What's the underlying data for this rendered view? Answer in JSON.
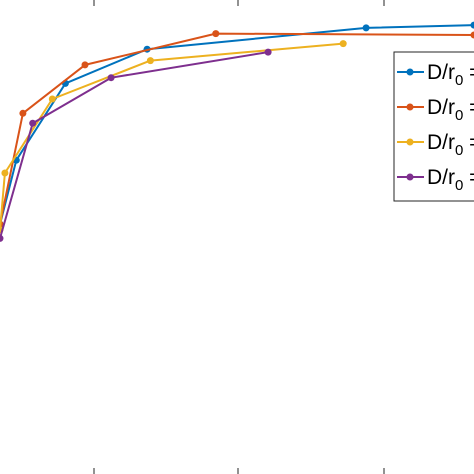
{
  "chart_data": {
    "type": "line",
    "title": "",
    "xlabel": "",
    "ylabel": "",
    "grid": false,
    "legend_position": "right, partially cropped",
    "series": [
      {
        "name": "D/r0 = …",
        "legend_label_main": "D/r",
        "legend_label_sub": "0",
        "legend_label_suffix": " =",
        "color": "#0072BD",
        "points": [
          [
            0,
            0.3
          ],
          [
            0.5,
            0.525
          ],
          [
            2,
            0.795
          ],
          [
            4.5,
            0.915
          ],
          [
            11.2,
            0.99
          ],
          [
            14.5,
            1.0
          ]
        ]
      },
      {
        "name": "D/r0 = …",
        "legend_label_main": "D/r",
        "legend_label_sub": "0",
        "legend_label_suffix": " =",
        "color": "#D95319",
        "points": [
          [
            0,
            0.3
          ],
          [
            0.7,
            0.69
          ],
          [
            2.6,
            0.86
          ],
          [
            6.6,
            0.97
          ],
          [
            14.5,
            0.965
          ]
        ]
      },
      {
        "name": "D/r0 = …",
        "legend_label_main": "D/r",
        "legend_label_sub": "0",
        "legend_label_suffix": " =",
        "color": "#EDB120",
        "points": [
          [
            0,
            0.28
          ],
          [
            0.15,
            0.48
          ],
          [
            1.6,
            0.74
          ],
          [
            4.6,
            0.875
          ],
          [
            10.5,
            0.935
          ]
        ]
      },
      {
        "name": "D/r0 = …",
        "legend_label_main": "D/r",
        "legend_label_sub": "0",
        "legend_label_suffix": " =",
        "color": "#7E2F8E",
        "points": [
          [
            0,
            0.25
          ],
          [
            1.0,
            0.655
          ],
          [
            3.4,
            0.815
          ],
          [
            8.2,
            0.905
          ]
        ]
      }
    ],
    "xlim": [
      0,
      14.5
    ],
    "ylim": [
      -0.55,
      1.06
    ]
  }
}
